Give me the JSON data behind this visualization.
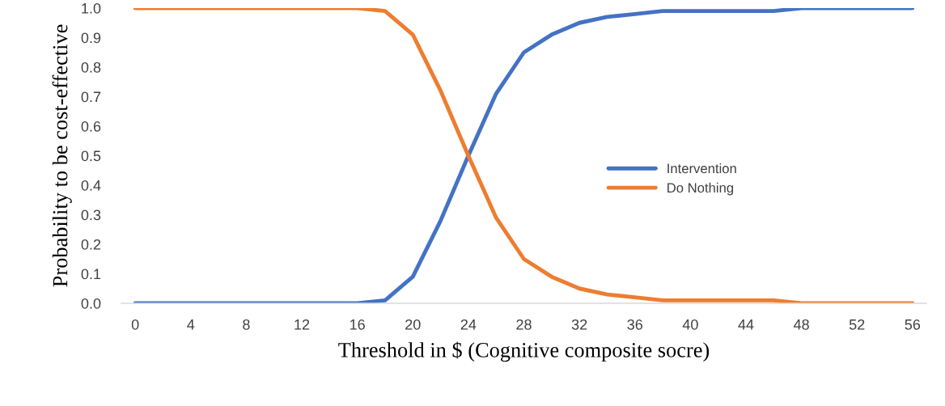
{
  "chart_data": {
    "type": "line",
    "xlabel": "Threshold in $ (Cognitive composite socre)",
    "ylabel": "Probability to be cost-effective",
    "categories": [
      "0",
      null,
      "4",
      null,
      "8",
      null,
      "12",
      null,
      "16",
      null,
      "20",
      null,
      "24",
      null,
      "28",
      null,
      "32",
      null,
      "36",
      null,
      "40",
      null,
      "44",
      null,
      "48",
      null,
      "52",
      null,
      "56"
    ],
    "ylim": [
      0,
      1
    ],
    "yticks": [
      {
        "value": 0,
        "label": "0.0"
      },
      {
        "value": 0.1,
        "label": "0.1"
      },
      {
        "value": 0.2,
        "label": "0.2"
      },
      {
        "value": 0.3,
        "label": "0.3"
      },
      {
        "value": 0.4,
        "label": "0.4"
      },
      {
        "value": 0.5,
        "label": "0.5"
      },
      {
        "value": 0.6,
        "label": "0.6"
      },
      {
        "value": 0.7,
        "label": "0.7"
      },
      {
        "value": 0.8,
        "label": "0.8"
      },
      {
        "value": 0.9,
        "label": "0.9"
      },
      {
        "value": 1,
        "label": "1.0"
      }
    ],
    "series": [
      {
        "name": "Intervention",
        "color": "#4472c4",
        "values": [
          0,
          0,
          0,
          0,
          0,
          0,
          0,
          0,
          0,
          0.01,
          0.09,
          0.28,
          0.5,
          0.71,
          0.85,
          0.91,
          0.95,
          0.97,
          0.98,
          0.99,
          0.99,
          0.99,
          0.99,
          0.99,
          1,
          1,
          1,
          1,
          1
        ]
      },
      {
        "name": "Do Nothing",
        "color": "#ed7d31",
        "values": [
          1,
          1,
          1,
          1,
          1,
          1,
          1,
          1,
          1,
          0.99,
          0.91,
          0.72,
          0.5,
          0.29,
          0.15,
          0.09,
          0.05,
          0.03,
          0.02,
          0.01,
          0.01,
          0.01,
          0.01,
          0.01,
          0,
          0,
          0,
          0,
          0
        ]
      }
    ],
    "legend": "center right",
    "grid": false,
    "marker": "none",
    "line_style": "solid"
  }
}
